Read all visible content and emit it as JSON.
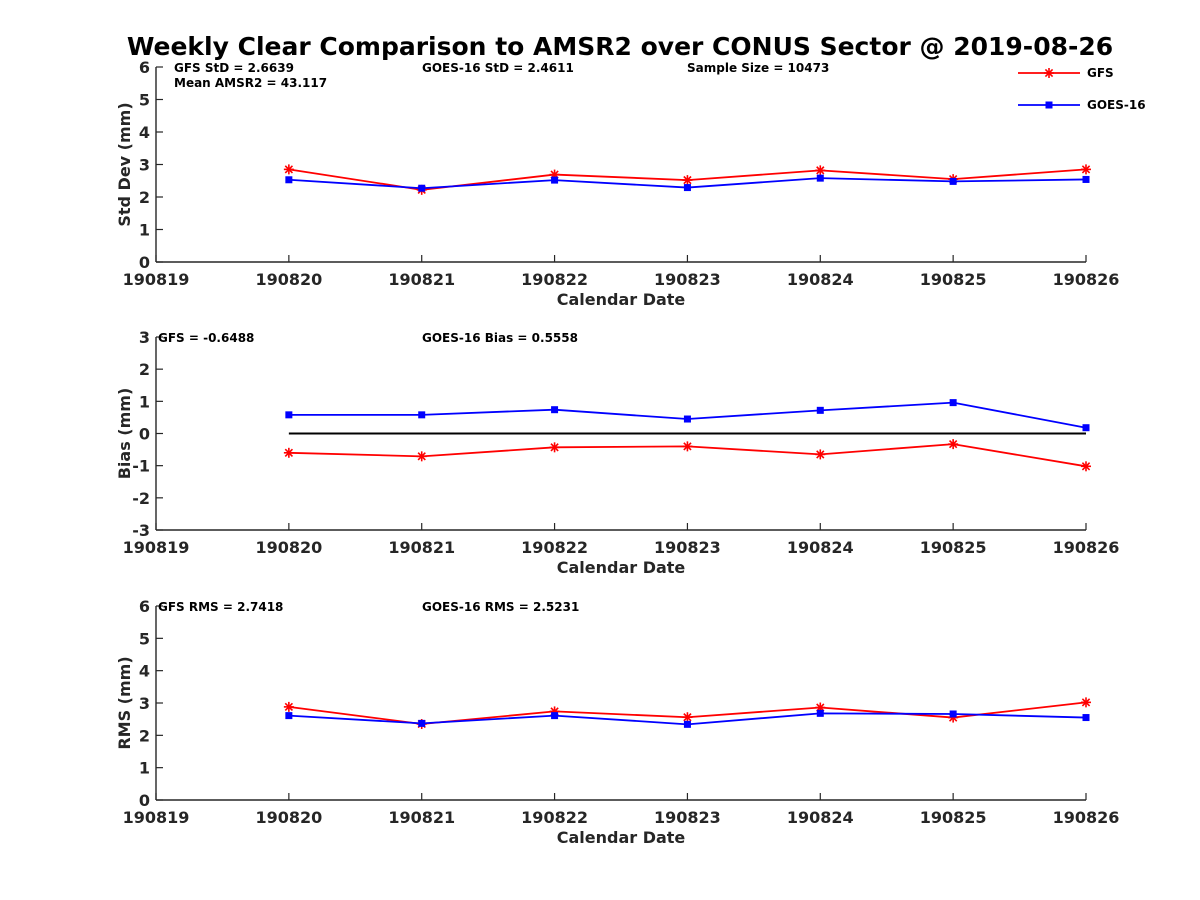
{
  "figure": {
    "title": "Weekly Clear Comparison to AMSR2 over CONUS Sector @ 2019-08-26"
  },
  "legend": {
    "placement": "top-right",
    "entries": [
      {
        "label": "GFS",
        "color": "#ff0000",
        "marker": "asterisk"
      },
      {
        "label": "GOES-16",
        "color": "#0000ff",
        "marker": "square"
      }
    ]
  },
  "chart_data": [
    {
      "type": "line",
      "xlabel": "Calendar Date",
      "ylabel": "Std Dev (mm)",
      "ylim": [
        0,
        6
      ],
      "yticks": [
        "0",
        "1",
        "2",
        "3",
        "4",
        "5",
        "6"
      ],
      "x_tick_labels": [
        "190819",
        "190820",
        "190821",
        "190822",
        "190823",
        "190824",
        "190825",
        "190826"
      ],
      "x": [
        "190820",
        "190821",
        "190822",
        "190823",
        "190824",
        "190825",
        "190826"
      ],
      "reference_line": null,
      "series": [
        {
          "name": "GFS",
          "color": "#ff0000",
          "marker": "asterisk",
          "values": [
            2.85,
            2.22,
            2.69,
            2.52,
            2.82,
            2.55,
            2.85
          ]
        },
        {
          "name": "GOES-16",
          "color": "#0000ff",
          "marker": "square",
          "values": [
            2.53,
            2.27,
            2.52,
            2.29,
            2.58,
            2.48,
            2.54
          ]
        }
      ],
      "annotations": [
        {
          "text": "GFS StD = 2.6639",
          "column": 1,
          "row": 1
        },
        {
          "text": "Mean AMSR2 = 43.117",
          "column": 1,
          "row": 2
        },
        {
          "text": "GOES-16 StD = 2.4611",
          "column": 2,
          "row": 1
        },
        {
          "text": "Sample Size = 10473",
          "column": 3,
          "row": 1
        }
      ]
    },
    {
      "type": "line",
      "xlabel": "Calendar Date",
      "ylabel": "Bias (mm)",
      "ylim": [
        -3,
        3
      ],
      "yticks": [
        "-3",
        "-2",
        "-1",
        "0",
        "1",
        "2",
        "3"
      ],
      "x_tick_labels": [
        "190819",
        "190820",
        "190821",
        "190822",
        "190823",
        "190824",
        "190825",
        "190826"
      ],
      "x": [
        "190820",
        "190821",
        "190822",
        "190823",
        "190824",
        "190825",
        "190826"
      ],
      "reference_line": 0,
      "series": [
        {
          "name": "GFS",
          "color": "#ff0000",
          "marker": "asterisk",
          "values": [
            -0.6,
            -0.71,
            -0.43,
            -0.4,
            -0.65,
            -0.33,
            -1.02
          ]
        },
        {
          "name": "GOES-16",
          "color": "#0000ff",
          "marker": "square",
          "values": [
            0.58,
            0.58,
            0.74,
            0.45,
            0.72,
            0.96,
            0.18
          ]
        }
      ],
      "annotations": [
        {
          "text": "GFS = -0.6488",
          "column": 0,
          "row": 1
        },
        {
          "text": "GOES-16 Bias  = 0.5558",
          "column": 2,
          "row": 1
        }
      ]
    },
    {
      "type": "line",
      "xlabel": "Calendar Date",
      "ylabel": "RMS (mm)",
      "ylim": [
        0,
        6
      ],
      "yticks": [
        "0",
        "1",
        "2",
        "3",
        "4",
        "5",
        "6"
      ],
      "x_tick_labels": [
        "190819",
        "190820",
        "190821",
        "190822",
        "190823",
        "190824",
        "190825",
        "190826"
      ],
      "x": [
        "190820",
        "190821",
        "190822",
        "190823",
        "190824",
        "190825",
        "190826"
      ],
      "reference_line": null,
      "series": [
        {
          "name": "GFS",
          "color": "#ff0000",
          "marker": "asterisk",
          "values": [
            2.88,
            2.35,
            2.74,
            2.56,
            2.86,
            2.55,
            3.02
          ]
        },
        {
          "name": "GOES-16",
          "color": "#0000ff",
          "marker": "square",
          "values": [
            2.61,
            2.37,
            2.61,
            2.34,
            2.68,
            2.66,
            2.55
          ]
        }
      ],
      "annotations": [
        {
          "text": "GFS RMS = 2.7418",
          "column": 0,
          "row": 1
        },
        {
          "text": "GOES-16 RMS = 2.5231",
          "column": 2,
          "row": 1
        }
      ]
    }
  ]
}
